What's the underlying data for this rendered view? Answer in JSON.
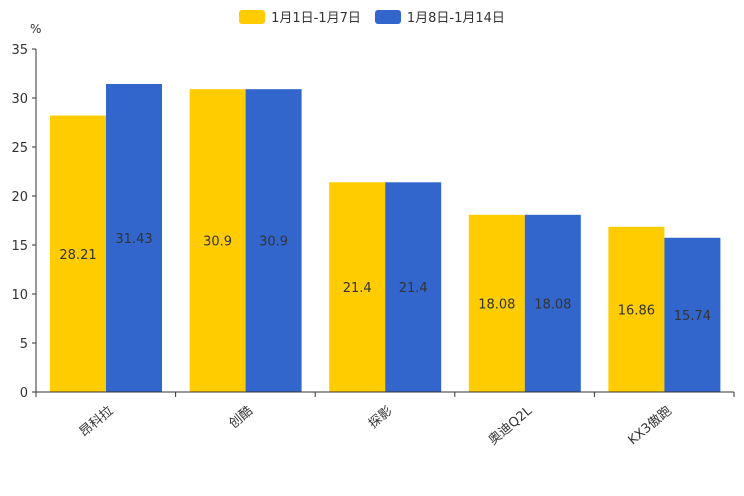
{
  "chart_data": {
    "type": "bar",
    "title": "",
    "ylabel": "%",
    "xlabel": "",
    "ylim": [
      0,
      35
    ],
    "yticks": [
      "0",
      "5",
      "10",
      "15",
      "20",
      "25",
      "30",
      "35"
    ],
    "categories": [
      "昂科拉",
      "创酷",
      "探影",
      "奥迪Q2L",
      "KX3傲跑"
    ],
    "series": [
      {
        "name": "1月1日-1月7日",
        "color": "#FFCC00",
        "values": [
          28.21,
          30.9,
          21.4,
          18.08,
          16.86
        ]
      },
      {
        "name": "1月8日-1月14日",
        "color": "#3366CC",
        "values": [
          31.43,
          30.9,
          21.4,
          18.08,
          15.74
        ]
      }
    ]
  }
}
